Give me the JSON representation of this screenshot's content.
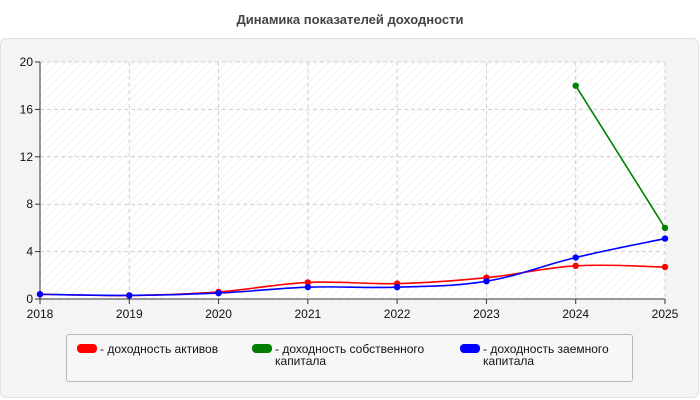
{
  "chart_data": {
    "type": "line",
    "title": "Динамика показателей доходности",
    "x": [
      "2018",
      "2019",
      "2020",
      "2021",
      "2022",
      "2023",
      "2024",
      "2025"
    ],
    "ylim": [
      0,
      20
    ],
    "yticks": [
      "0",
      "4",
      "8",
      "12",
      "16",
      "20"
    ],
    "grid": true,
    "legend_position": "bottom",
    "series": [
      {
        "name": "- доходность активов",
        "color": "#ff0000",
        "values": [
          0.4,
          0.3,
          0.6,
          1.4,
          1.3,
          1.8,
          2.8,
          2.7
        ]
      },
      {
        "name": "- доходность собственного капитала",
        "color": "#008000",
        "values": [
          null,
          null,
          null,
          null,
          null,
          null,
          18.0,
          6.0
        ]
      },
      {
        "name": "- доходность заемного капитала",
        "color": "#0000ff",
        "values": [
          0.4,
          0.3,
          0.5,
          1.0,
          1.0,
          1.5,
          3.5,
          5.1
        ]
      }
    ]
  }
}
